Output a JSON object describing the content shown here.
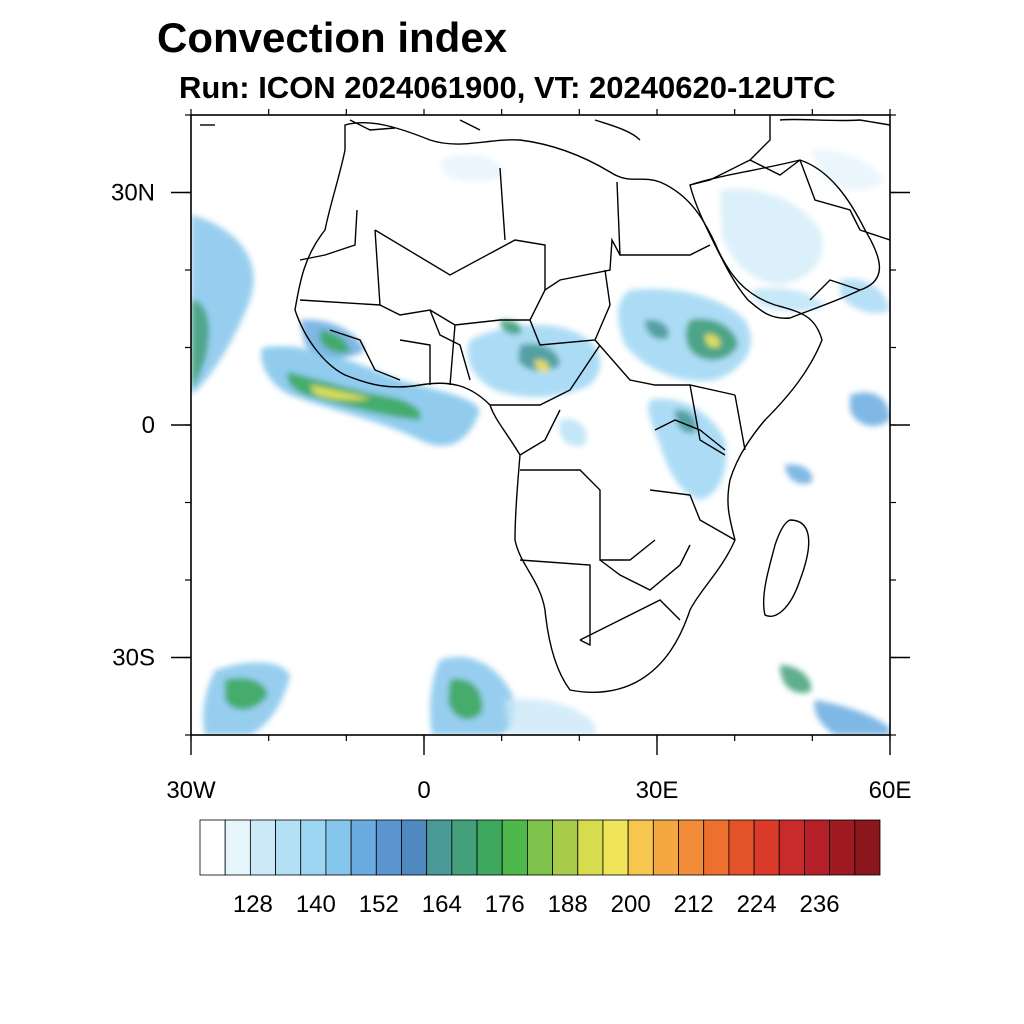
{
  "title": "Convection index",
  "subtitle": "Run: ICON 2024061900,  VT: 20240620-12UTC",
  "map": {
    "region": "Africa",
    "lon_range": [
      -30,
      60
    ],
    "lat_range": [
      -40,
      40
    ],
    "x_axis": {
      "ticks": [
        {
          "lon": -30,
          "label": "30W"
        },
        {
          "lon": 0,
          "label": "0"
        },
        {
          "lon": 30,
          "label": "30E"
        },
        {
          "lon": 60,
          "label": "60E"
        }
      ]
    },
    "y_axis": {
      "ticks": [
        {
          "lat": 30,
          "label": "30N"
        },
        {
          "lat": 0,
          "label": "0"
        },
        {
          "lat": -30,
          "label": "30S"
        }
      ]
    }
  },
  "colorbar": {
    "labels": [
      "128",
      "140",
      "152",
      "164",
      "176",
      "188",
      "200",
      "212",
      "224",
      "236"
    ],
    "colors": [
      "#ffffff",
      "#e6f4fc",
      "#cce9f8",
      "#b4e0f6",
      "#9dd6f3",
      "#85c6ec",
      "#6aace0",
      "#5a95cf",
      "#4f89c0",
      "#4a9a9a",
      "#43a07a",
      "#3da85e",
      "#4fb84a",
      "#7dc24a",
      "#a8cc4a",
      "#d6dc4e",
      "#efe45a",
      "#f6c64e",
      "#f5a842",
      "#f28c38",
      "#ee6f2e",
      "#e4522a",
      "#d93a2a",
      "#c92a2a",
      "#b51f28",
      "#a01a22",
      "#8b161c"
    ]
  }
}
